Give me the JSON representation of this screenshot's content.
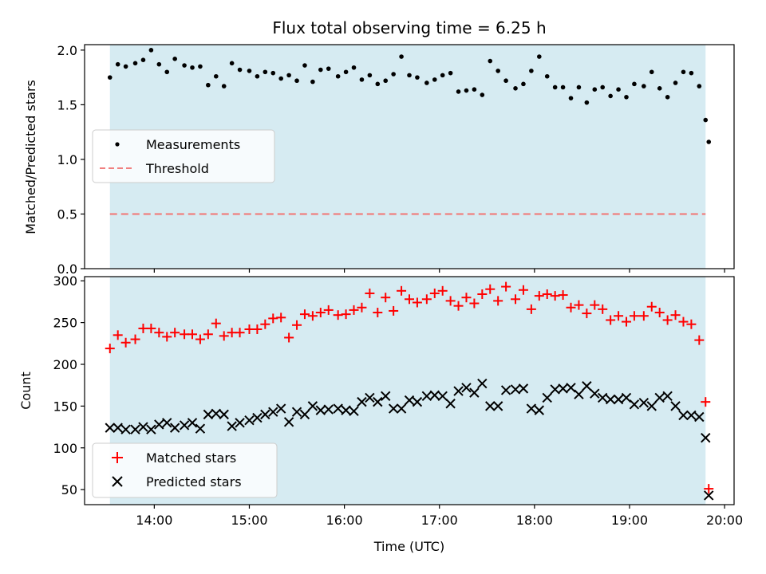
{
  "chart_data": [
    {
      "type": "scatter",
      "title": "Flux total observing time = 6.25 h",
      "xlabel": "",
      "ylabel": "Matched/Predicted stars",
      "x_unit": "UTC time",
      "xlim": [
        "13:16",
        "20:06"
      ],
      "ylim": [
        0,
        2.05
      ],
      "x_ticks": [
        "14:00",
        "15:00",
        "16:00",
        "17:00",
        "18:00",
        "19:00",
        "20:00"
      ],
      "y_ticks": [
        "0.0",
        "0.5",
        "1.0",
        "1.5",
        "2.0"
      ],
      "shaded_span": [
        "13:32",
        "19:48"
      ],
      "threshold": 0.5,
      "legend": {
        "placement": "center-left",
        "entries": [
          "Measurements",
          "Threshold"
        ]
      },
      "series": [
        {
          "name": "Measurements",
          "marker": "dot",
          "color": "#000000",
          "x": [
            "13:32",
            "13:37",
            "13:42",
            "13:48",
            "13:53",
            "13:58",
            "14:03",
            "14:08",
            "14:13",
            "14:19",
            "14:24",
            "14:29",
            "14:34",
            "14:39",
            "14:44",
            "14:49",
            "14:54",
            "15:00",
            "15:05",
            "15:10",
            "15:15",
            "15:20",
            "15:25",
            "15:30",
            "15:35",
            "15:40",
            "15:45",
            "15:50",
            "15:56",
            "16:01",
            "16:06",
            "16:11",
            "16:16",
            "16:21",
            "16:26",
            "16:31",
            "16:36",
            "16:41",
            "16:46",
            "16:52",
            "16:57",
            "17:02",
            "17:07",
            "17:12",
            "17:17",
            "17:22",
            "17:27",
            "17:32",
            "17:37",
            "17:42",
            "17:48",
            "17:53",
            "17:58",
            "18:03",
            "18:08",
            "18:13",
            "18:18",
            "18:23",
            "18:28",
            "18:33",
            "18:38",
            "18:43",
            "18:48",
            "18:53",
            "18:58",
            "19:03",
            "19:09",
            "19:14",
            "19:19",
            "19:24",
            "19:29",
            "19:34",
            "19:39",
            "19:44",
            "19:48"
          ],
          "y": [
            1.75,
            1.87,
            1.85,
            1.88,
            1.91,
            2.0,
            1.87,
            1.8,
            1.92,
            1.86,
            1.84,
            1.85,
            1.68,
            1.76,
            1.67,
            1.88,
            1.82,
            1.81,
            1.76,
            1.8,
            1.79,
            1.74,
            1.77,
            1.72,
            1.86,
            1.71,
            1.82,
            1.83,
            1.76,
            1.8,
            1.84,
            1.73,
            1.77,
            1.69,
            1.72,
            1.78,
            1.94,
            1.77,
            1.75,
            1.7,
            1.73,
            1.77,
            1.79,
            1.62,
            1.63,
            1.64,
            1.59,
            1.9,
            1.81,
            1.72,
            1.65,
            1.69,
            1.81,
            1.94,
            1.76,
            1.66,
            1.66,
            1.56,
            1.66,
            1.52,
            1.64,
            1.66,
            1.58,
            1.64,
            1.57,
            1.69,
            1.67,
            1.8,
            1.65,
            1.57,
            1.7,
            1.8,
            1.79,
            1.67,
            1.36
          ]
        },
        {
          "name": "Threshold",
          "marker": "dashed-line",
          "color": "#f08080",
          "x": [
            "13:32",
            "19:48"
          ],
          "y": [
            0.5,
            0.5
          ]
        }
      ],
      "extra_point": {
        "x": "19:50",
        "y": 1.16
      }
    },
    {
      "type": "scatter",
      "title": "",
      "xlabel": "Time (UTC)",
      "ylabel": "Count",
      "xlim": [
        "13:16",
        "20:06"
      ],
      "ylim": [
        32,
        305
      ],
      "x_ticks": [
        "14:00",
        "15:00",
        "16:00",
        "17:00",
        "18:00",
        "19:00",
        "20:00"
      ],
      "y_ticks": [
        "50",
        "100",
        "150",
        "200",
        "250",
        "300"
      ],
      "shaded_span": [
        "13:32",
        "19:48"
      ],
      "legend": {
        "placement": "bottom-left",
        "entries": [
          "Matched stars",
          "Predicted stars"
        ]
      },
      "series": [
        {
          "name": "Matched stars",
          "marker": "plus",
          "color": "#ff0000",
          "x": [
            "13:32",
            "13:37",
            "13:42",
            "13:48",
            "13:53",
            "13:58",
            "14:03",
            "14:08",
            "14:13",
            "14:19",
            "14:24",
            "14:29",
            "14:34",
            "14:39",
            "14:44",
            "14:49",
            "14:54",
            "15:00",
            "15:05",
            "15:10",
            "15:15",
            "15:20",
            "15:25",
            "15:30",
            "15:35",
            "15:40",
            "15:45",
            "15:50",
            "15:56",
            "16:01",
            "16:06",
            "16:11",
            "16:16",
            "16:21",
            "16:26",
            "16:31",
            "16:36",
            "16:41",
            "16:46",
            "16:52",
            "16:57",
            "17:02",
            "17:07",
            "17:12",
            "17:17",
            "17:22",
            "17:27",
            "17:32",
            "17:37",
            "17:42",
            "17:48",
            "17:53",
            "17:58",
            "18:03",
            "18:08",
            "18:13",
            "18:18",
            "18:23",
            "18:28",
            "18:33",
            "18:38",
            "18:43",
            "18:48",
            "18:53",
            "18:58",
            "19:03",
            "19:09",
            "19:14",
            "19:19",
            "19:24",
            "19:29",
            "19:34",
            "19:39",
            "19:44",
            "19:48",
            "19:50"
          ],
          "y": [
            219,
            235,
            226,
            230,
            243,
            243,
            238,
            233,
            238,
            236,
            236,
            230,
            236,
            249,
            234,
            238,
            238,
            242,
            242,
            248,
            255,
            256,
            232,
            247,
            260,
            258,
            262,
            265,
            259,
            260,
            265,
            268,
            285,
            262,
            280,
            264,
            288,
            278,
            274,
            278,
            285,
            288,
            276,
            270,
            280,
            273,
            284,
            290,
            276,
            293,
            278,
            289,
            266,
            282,
            284,
            282,
            283,
            268,
            271,
            261,
            271,
            266,
            253,
            258,
            251,
            258,
            258,
            269,
            262,
            253,
            259,
            251,
            248,
            229,
            155,
            51
          ]
        },
        {
          "name": "Predicted stars",
          "marker": "x",
          "color": "#000000",
          "x": [
            "13:32",
            "13:37",
            "13:42",
            "13:48",
            "13:53",
            "13:58",
            "14:03",
            "14:08",
            "14:13",
            "14:19",
            "14:24",
            "14:29",
            "14:34",
            "14:39",
            "14:44",
            "14:49",
            "14:54",
            "15:00",
            "15:05",
            "15:10",
            "15:15",
            "15:20",
            "15:25",
            "15:30",
            "15:35",
            "15:40",
            "15:45",
            "15:50",
            "15:56",
            "16:01",
            "16:06",
            "16:11",
            "16:16",
            "16:21",
            "16:26",
            "16:31",
            "16:36",
            "16:41",
            "16:46",
            "16:52",
            "16:57",
            "17:02",
            "17:07",
            "17:12",
            "17:17",
            "17:22",
            "17:27",
            "17:32",
            "17:37",
            "17:42",
            "17:48",
            "17:53",
            "17:58",
            "18:03",
            "18:08",
            "18:13",
            "18:18",
            "18:23",
            "18:28",
            "18:33",
            "18:38",
            "18:43",
            "18:48",
            "18:53",
            "18:58",
            "19:03",
            "19:09",
            "19:14",
            "19:19",
            "19:24",
            "19:29",
            "19:34",
            "19:39",
            "19:44",
            "19:48",
            "19:50"
          ],
          "y": [
            124,
            124,
            122,
            122,
            125,
            122,
            128,
            130,
            124,
            127,
            130,
            123,
            140,
            141,
            140,
            126,
            130,
            133,
            136,
            140,
            143,
            147,
            131,
            143,
            140,
            150,
            145,
            146,
            147,
            145,
            144,
            155,
            160,
            155,
            162,
            147,
            147,
            157,
            155,
            162,
            163,
            162,
            153,
            168,
            172,
            166,
            177,
            150,
            150,
            169,
            170,
            171,
            147,
            145,
            160,
            170,
            171,
            172,
            164,
            174,
            165,
            160,
            158,
            158,
            160,
            152,
            154,
            150,
            160,
            162,
            150,
            139,
            139,
            137,
            112,
            43
          ]
        }
      ]
    }
  ]
}
